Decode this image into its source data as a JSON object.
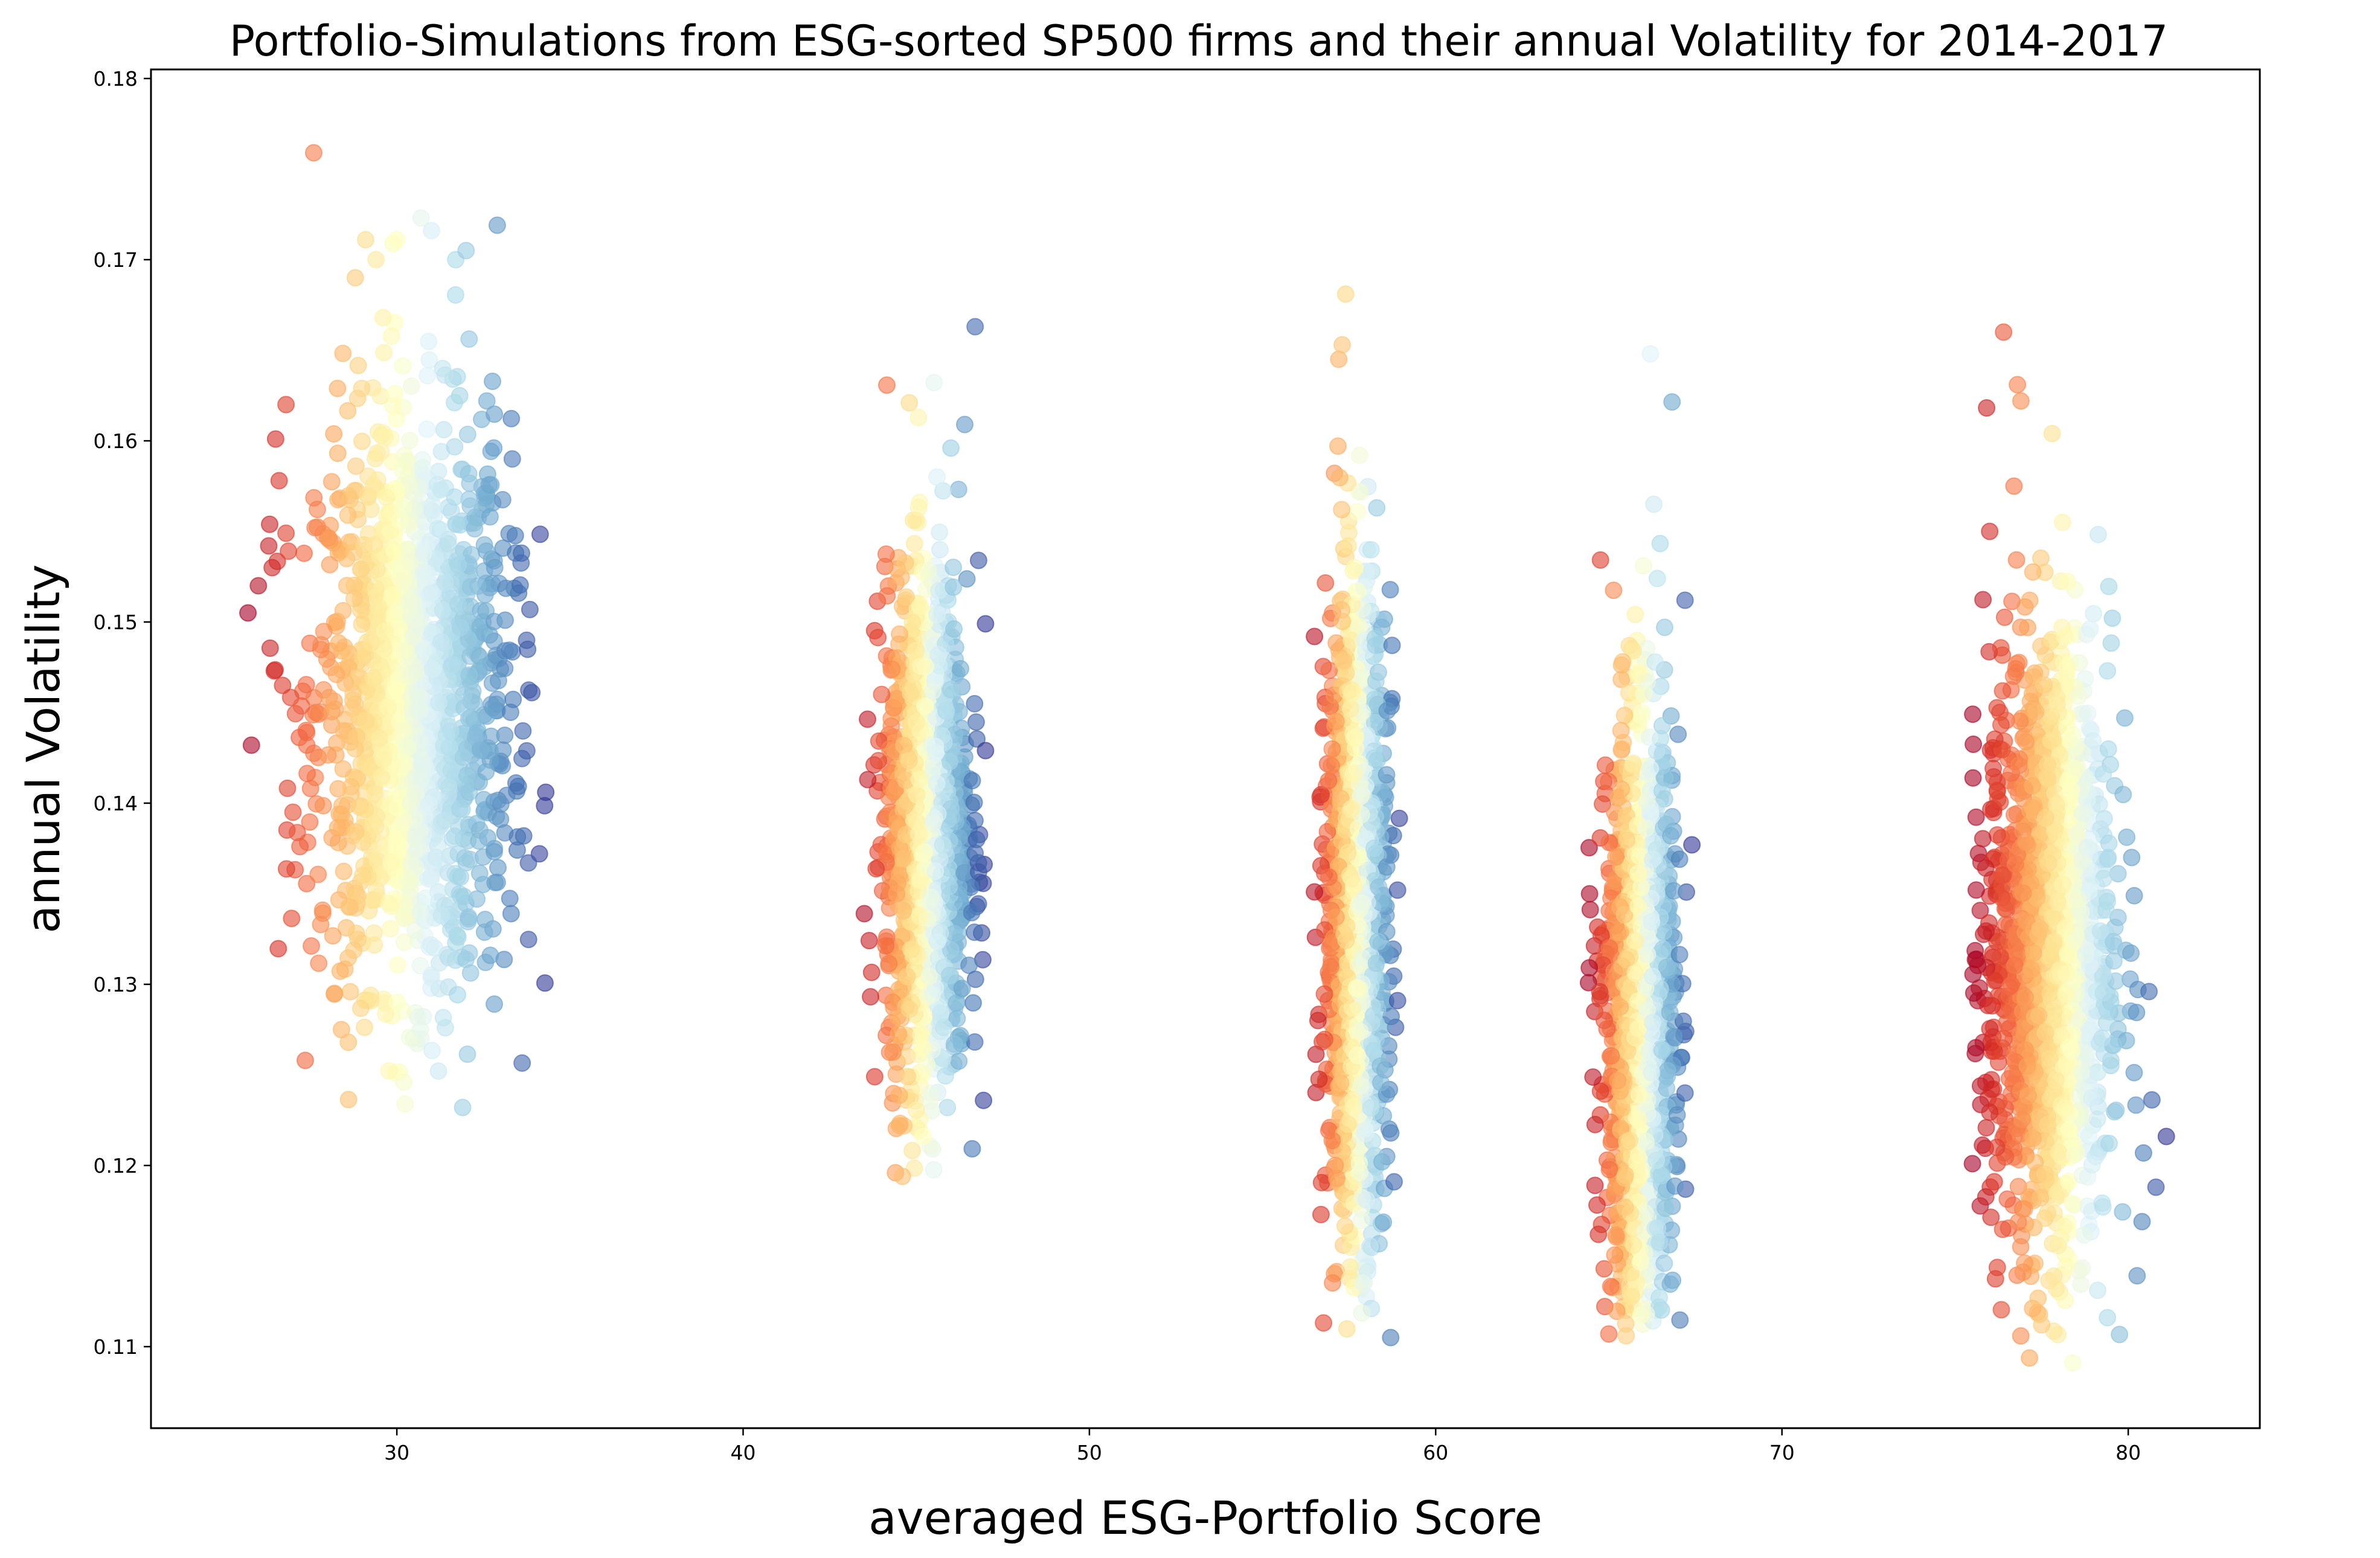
{
  "chart_data": {
    "type": "scatter",
    "title": "Portfolio-Simulations from ESG-sorted SP500 firms and their annual Volatility for 2014-2017",
    "xlabel": "averaged ESG-Portfolio Score",
    "ylabel": "annual Volatility",
    "xlim": [
      22.9,
      83.8
    ],
    "ylim": [
      0.1055,
      0.1805
    ],
    "xticks": [
      "30",
      "40",
      "50",
      "60",
      "70",
      "80"
    ],
    "yticks": [
      "0.11",
      "0.12",
      "0.13",
      "0.14",
      "0.15",
      "0.16",
      "0.17",
      "0.18"
    ],
    "grid": false,
    "legend": "none",
    "colormap": "RdYlBu",
    "colormap_stops": [
      "#a50026",
      "#d73027",
      "#f46d43",
      "#fdae61",
      "#fee090",
      "#ffffbf",
      "#e0f3f8",
      "#abd9e9",
      "#74add1",
      "#4575b4",
      "#313695"
    ],
    "marker_alpha": 0.6,
    "clusters": [
      {
        "x_center": 30.5,
        "x_range": [
          25.7,
          34.3
        ],
        "y_center": 0.1455,
        "y_range": [
          0.1232,
          0.1759
        ]
      },
      {
        "x_center": 45.3,
        "x_range": [
          43.4,
          47.0
        ],
        "y_center": 0.1385,
        "y_range": [
          0.1194,
          0.1663
        ]
      },
      {
        "x_center": 57.7,
        "x_range": [
          56.4,
          59.0
        ],
        "y_center": 0.134,
        "y_range": [
          0.1105,
          0.1681
        ]
      },
      {
        "x_center": 65.9,
        "x_range": [
          64.4,
          67.4
        ],
        "y_center": 0.128,
        "y_range": [
          0.1106,
          0.1648
        ]
      },
      {
        "x_center": 77.7,
        "x_range": [
          75.5,
          81.1
        ],
        "y_center": 0.132,
        "y_range": [
          0.1091,
          0.166
        ]
      }
    ],
    "points": [
      [
        25.7,
        0.1505
      ],
      [
        25.8,
        0.1432
      ],
      [
        26.0,
        0.152
      ],
      [
        26.3,
        0.1542
      ],
      [
        26.4,
        0.153
      ],
      [
        26.5,
        0.1601
      ],
      [
        26.6,
        0.1578
      ],
      [
        26.7,
        0.1465
      ],
      [
        26.8,
        0.1549
      ],
      [
        26.8,
        0.162
      ],
      [
        27.0,
        0.1395
      ],
      [
        27.2,
        0.1376
      ],
      [
        27.4,
        0.1432
      ],
      [
        27.6,
        0.1759
      ],
      [
        27.8,
        0.1333
      ],
      [
        28.2,
        0.1295
      ],
      [
        28.4,
        0.1275
      ],
      [
        28.6,
        0.1268
      ],
      [
        28.8,
        0.169
      ],
      [
        29.1,
        0.1711
      ],
      [
        29.4,
        0.17
      ],
      [
        29.6,
        0.1668
      ],
      [
        30.0,
        0.1711
      ],
      [
        30.2,
        0.1246
      ],
      [
        30.7,
        0.1723
      ],
      [
        31.0,
        0.1716
      ],
      [
        31.4,
        0.1276
      ],
      [
        31.7,
        0.17
      ],
      [
        32.0,
        0.1705
      ],
      [
        31.9,
        0.1232
      ],
      [
        32.9,
        0.1719
      ],
      [
        32.6,
        0.1622
      ],
      [
        33.6,
        0.1538
      ],
      [
        33.9,
        0.1461
      ],
      [
        34.3,
        0.1406
      ],
      [
        33.8,
        0.1367
      ],
      [
        33.3,
        0.1339
      ],
      [
        32.7,
        0.1316
      ],
      [
        43.5,
        0.1339
      ],
      [
        43.6,
        0.1413
      ],
      [
        43.8,
        0.1249
      ],
      [
        44.0,
        0.146
      ],
      [
        44.4,
        0.1196
      ],
      [
        44.6,
        0.1194
      ],
      [
        44.8,
        0.1621
      ],
      [
        45.2,
        0.1216
      ],
      [
        45.6,
        0.158
      ],
      [
        46.0,
        0.1596
      ],
      [
        46.1,
        0.1267
      ],
      [
        46.4,
        0.1609
      ],
      [
        46.7,
        0.1663
      ],
      [
        46.8,
        0.1534
      ],
      [
        47.0,
        0.1499
      ],
      [
        47.0,
        0.1429
      ],
      [
        46.8,
        0.1362
      ],
      [
        56.5,
        0.1492
      ],
      [
        56.5,
        0.1351
      ],
      [
        56.6,
        0.128
      ],
      [
        57.1,
        0.12
      ],
      [
        57.2,
        0.1645
      ],
      [
        57.3,
        0.1653
      ],
      [
        57.4,
        0.1681
      ],
      [
        57.8,
        0.1592
      ],
      [
        57.9,
        0.1135
      ],
      [
        58.0,
        0.1181
      ],
      [
        58.3,
        0.1563
      ],
      [
        58.6,
        0.1451
      ],
      [
        58.7,
        0.1105
      ],
      [
        58.9,
        0.1352
      ],
      [
        58.9,
        0.1291
      ],
      [
        58.8,
        0.1191
      ],
      [
        64.6,
        0.1189
      ],
      [
        64.7,
        0.1162
      ],
      [
        64.9,
        0.1421
      ],
      [
        65.0,
        0.1107
      ],
      [
        65.4,
        0.1478
      ],
      [
        65.5,
        0.1106
      ],
      [
        66.0,
        0.1531
      ],
      [
        66.2,
        0.1648
      ],
      [
        66.3,
        0.1565
      ],
      [
        66.4,
        0.1524
      ],
      [
        66.6,
        0.1146
      ],
      [
        67.0,
        0.1438
      ],
      [
        67.2,
        0.1512
      ],
      [
        67.4,
        0.1377
      ],
      [
        67.2,
        0.124
      ],
      [
        75.5,
        0.1201
      ],
      [
        75.6,
        0.1265
      ],
      [
        75.7,
        0.1298
      ],
      [
        76.0,
        0.155
      ],
      [
        76.2,
        0.121
      ],
      [
        76.4,
        0.166
      ],
      [
        76.7,
        0.1575
      ],
      [
        76.8,
        0.1631
      ],
      [
        76.9,
        0.1622
      ],
      [
        77.0,
        0.1176
      ],
      [
        77.5,
        0.1112
      ],
      [
        77.8,
        0.1604
      ],
      [
        78.1,
        0.1555
      ],
      [
        78.4,
        0.1091
      ],
      [
        79.4,
        0.1473
      ],
      [
        79.4,
        0.1116
      ],
      [
        79.9,
        0.1447
      ],
      [
        80.1,
        0.137
      ],
      [
        80.6,
        0.1296
      ],
      [
        81.1,
        0.1216
      ],
      [
        80.8,
        0.1188
      ],
      [
        80.4,
        0.1169
      ]
    ]
  }
}
